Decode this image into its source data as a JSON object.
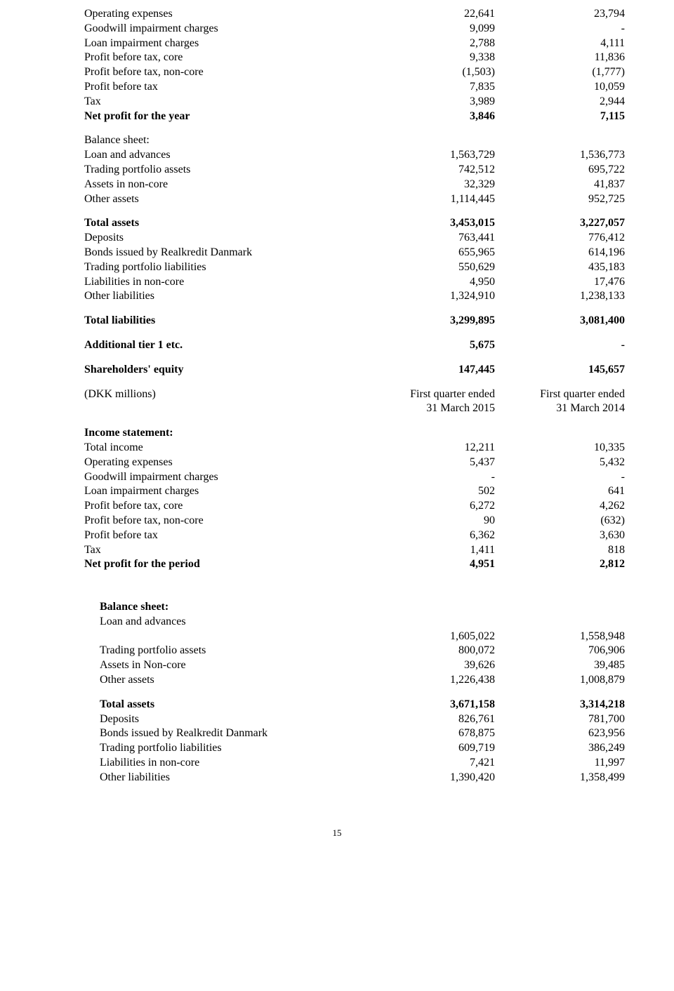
{
  "s1": {
    "rows": [
      {
        "label": "Operating expenses",
        "c1": "22,641",
        "c2": "23,794",
        "bold": false
      },
      {
        "label": "Goodwill impairment charges",
        "c1": "9,099",
        "c2": "-",
        "bold": false
      },
      {
        "label": "Loan impairment charges",
        "c1": "2,788",
        "c2": "4,111",
        "bold": false
      },
      {
        "label": "Profit before tax, core",
        "c1": "9,338",
        "c2": "11,836",
        "bold": false
      },
      {
        "label": "Profit before tax, non-core",
        "c1": "(1,503)",
        "c2": "(1,777)",
        "bold": false
      },
      {
        "label": "Profit before tax",
        "c1": "7,835",
        "c2": "10,059",
        "bold": false
      },
      {
        "label": "Tax",
        "c1": "3,989",
        "c2": "2,944",
        "bold": false
      },
      {
        "label": "Net profit for the year",
        "c1": "3,846",
        "c2": "7,115",
        "bold": true
      }
    ],
    "balance_header": "Balance sheet:",
    "brows": [
      {
        "label": "Loan and advances",
        "c1": "1,563,729",
        "c2": "1,536,773",
        "bold": false
      },
      {
        "label": "Trading portfolio assets",
        "c1": "742,512",
        "c2": "695,722",
        "bold": false
      },
      {
        "label": "Assets in non-core",
        "c1": "32,329",
        "c2": "41,837",
        "bold": false
      },
      {
        "label": "Other assets",
        "c1": "1,114,445",
        "c2": "952,725",
        "bold": false
      }
    ],
    "total_assets": {
      "label": "Total assets",
      "c1": "3,453,015",
      "c2": "3,227,057"
    },
    "lrows": [
      {
        "label": "Deposits",
        "c1": "763,441",
        "c2": "776,412"
      },
      {
        "label": "Bonds issued by Realkredit Danmark",
        "c1": "655,965",
        "c2": "614,196"
      },
      {
        "label": "Trading portfolio liabilities",
        "c1": "550,629",
        "c2": "435,183"
      },
      {
        "label": "Liabilities in non-core",
        "c1": "4,950",
        "c2": "17,476"
      },
      {
        "label": "Other liabilities",
        "c1": "1,324,910",
        "c2": "1,238,133"
      }
    ],
    "total_liab": {
      "label": "Total liabilities",
      "c1": "3,299,895",
      "c2": "3,081,400"
    },
    "tier1": {
      "label": "Additional tier 1 etc.",
      "c1": "5,675",
      "c2": "-"
    },
    "equity": {
      "label": "Shareholders' equity",
      "c1": "147,445",
      "c2": "145,657"
    },
    "header2": {
      "label": "(DKK millions)",
      "c1a": "First quarter ended",
      "c1b": "31 March 2015",
      "c2a": "First quarter ended",
      "c2b": "31 March 2014"
    },
    "income_header": "Income statement:",
    "irows": [
      {
        "label": "Total income",
        "c1": "12,211",
        "c2": "10,335",
        "bold": false
      },
      {
        "label": "Operating expenses",
        "c1": "5,437",
        "c2": "5,432",
        "bold": false
      },
      {
        "label": "Goodwill impairment charges",
        "c1": "-",
        "c2": "-",
        "bold": false
      },
      {
        "label": "Loan impairment charges",
        "c1": "502",
        "c2": "641",
        "bold": false
      },
      {
        "label": "Profit before tax, core",
        "c1": "6,272",
        "c2": "4,262",
        "bold": false
      },
      {
        "label": "Profit before tax, non-core",
        "c1": "90",
        "c2": "(632)",
        "bold": false
      },
      {
        "label": "Profit before tax",
        "c1": "6,362",
        "c2": "3,630",
        "bold": false
      },
      {
        "label": "Tax",
        "c1": "1,411",
        "c2": "818",
        "bold": false
      },
      {
        "label": "Net profit for the period",
        "c1": "4,951",
        "c2": "2,812",
        "bold": true
      }
    ]
  },
  "s2": {
    "balance_header": "Balance sheet:",
    "loan_label": "Loan and advances",
    "brows": [
      {
        "label": "",
        "c1": "1,605,022",
        "c2": "1,558,948"
      },
      {
        "label": "Trading portfolio assets",
        "c1": "800,072",
        "c2": "706,906"
      },
      {
        "label": "Assets in Non-core",
        "c1": "39,626",
        "c2": "39,485"
      },
      {
        "label": "Other assets",
        "c1": "1,226,438",
        "c2": "1,008,879"
      }
    ],
    "total_assets": {
      "label": "Total assets",
      "c1": "3,671,158",
      "c2": "3,314,218"
    },
    "lrows": [
      {
        "label": "Deposits",
        "c1": "826,761",
        "c2": "781,700"
      },
      {
        "label": "Bonds issued by Realkredit Danmark",
        "c1": "678,875",
        "c2": "623,956"
      },
      {
        "label": "Trading portfolio liabilities",
        "c1": "609,719",
        "c2": "386,249"
      },
      {
        "label": "Liabilities in non-core",
        "c1": "7,421",
        "c2": "11,997"
      },
      {
        "label": "Other liabilities",
        "c1": "1,390,420",
        "c2": "1,358,499"
      }
    ]
  },
  "page_number": "15"
}
